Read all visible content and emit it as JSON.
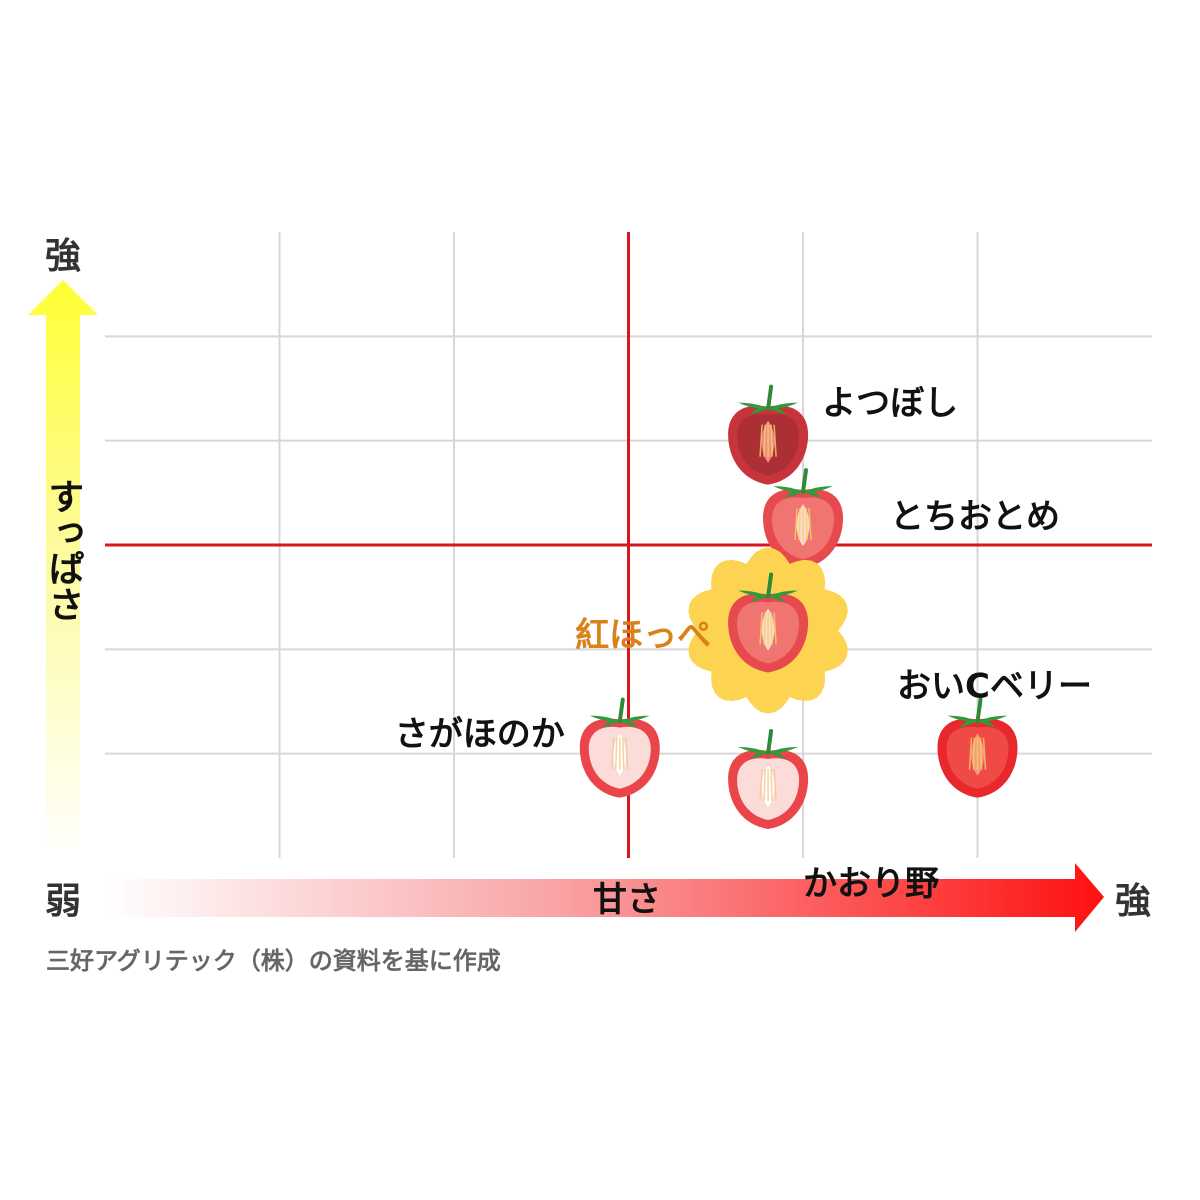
{
  "chart_data": {
    "type": "scatter",
    "xlabel": "甘さ",
    "ylabel": "すっぱさ",
    "x_low_label": "弱",
    "x_high_label": "強",
    "y_high_label": "強",
    "xlim": [
      0,
      6
    ],
    "ylim": [
      0,
      6
    ],
    "divider": {
      "x": 3,
      "y": 3
    },
    "grid": true,
    "points": [
      {
        "name": "よつぼし",
        "x": 3.8,
        "y": 4.0,
        "shade": "dark"
      },
      {
        "name": "とちおとめ",
        "x": 4.0,
        "y": 3.2,
        "shade": "mid"
      },
      {
        "name": "紅ほっぺ",
        "x": 3.8,
        "y": 2.2,
        "shade": "mid",
        "highlight": true
      },
      {
        "name": "おいCベリー",
        "x": 5.0,
        "y": 1.0,
        "shade": "bright"
      },
      {
        "name": "さがほのか",
        "x": 2.95,
        "y": 1.0,
        "shade": "light"
      },
      {
        "name": "かおり野",
        "x": 3.8,
        "y": 0.7,
        "shade": "light"
      }
    ]
  },
  "colors": {
    "divider": "#d9161e",
    "grid": "#d7d7d7",
    "highlight_label": "#d9821a",
    "highlight_badge": "#fdd451",
    "y_arrow_top": "#ffff33",
    "x_arrow_end": "#ff1010"
  },
  "source_note": "三好アグリテック（株）の資料を基に作成"
}
